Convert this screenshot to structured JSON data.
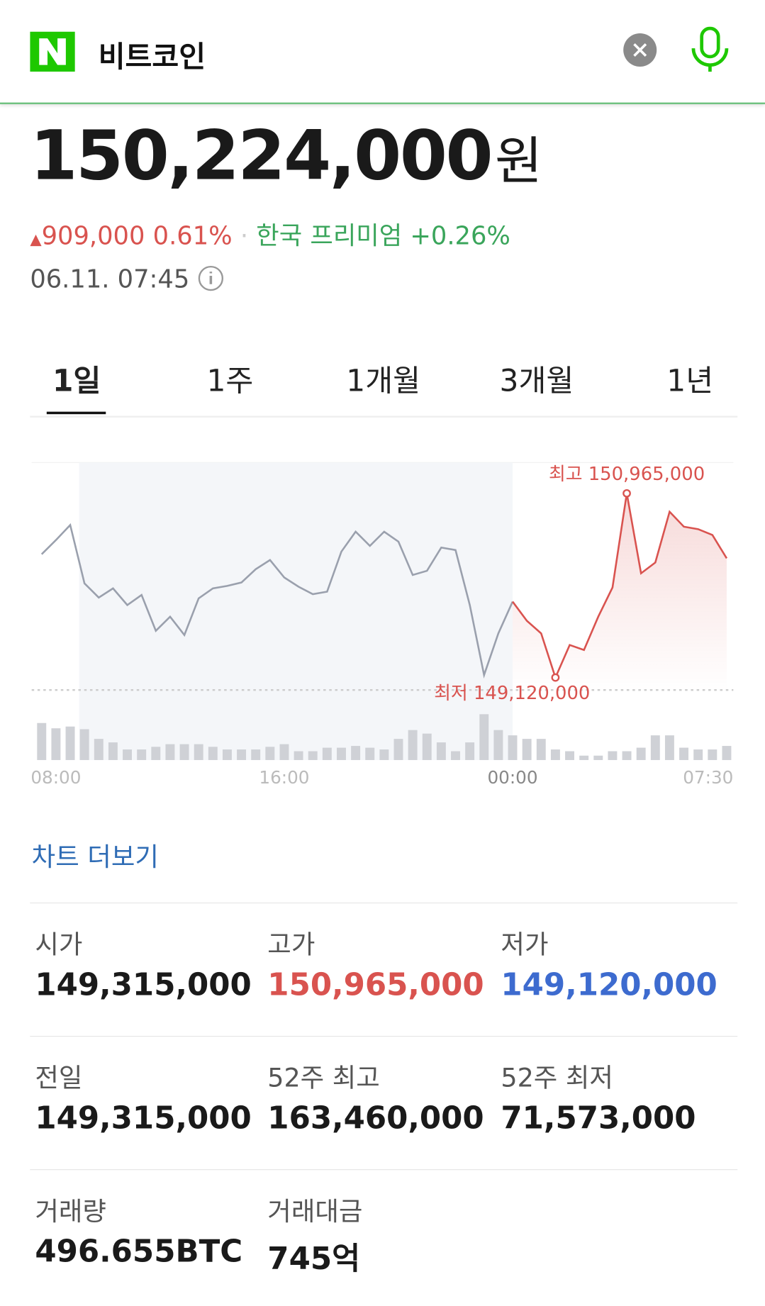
{
  "header": {
    "title": "비트코인"
  },
  "quote": {
    "price": "150,224,000",
    "unit": "원",
    "change": "909,000",
    "change_pct": "0.61%",
    "premium_label": "한국 프리미엄",
    "premium": "+0.26%",
    "timestamp": "06.11. 07:45"
  },
  "tabs": [
    "1일",
    "1주",
    "1개월",
    "3개월",
    "1년"
  ],
  "chart_data": {
    "type": "line",
    "categories": [
      null,
      "08:00",
      null,
      null,
      null,
      null,
      null,
      null,
      null,
      null,
      null,
      null,
      null,
      null,
      null,
      null,
      null,
      "16:00",
      null,
      null,
      null,
      null,
      null,
      null,
      null,
      null,
      null,
      null,
      null,
      null,
      null,
      null,
      null,
      "00:00",
      null,
      null,
      null,
      null,
      null,
      null,
      null,
      null,
      null,
      null,
      null,
      null,
      null,
      null,
      "07:30"
    ],
    "values": [
      150355000,
      150497000,
      150648000,
      150063000,
      149921000,
      150013000,
      149846000,
      149947000,
      149588000,
      149729000,
      149546000,
      149913000,
      150013000,
      150038000,
      150072000,
      150205000,
      150297000,
      150122000,
      150030000,
      149955000,
      149980000,
      150381000,
      150581000,
      150439000,
      150581000,
      150481000,
      150147000,
      150189000,
      150422000,
      150397000,
      149846000,
      149145000,
      149562000,
      149880000,
      149688000,
      149562000,
      149120000,
      149446000,
      149396000,
      149729000,
      150022000,
      150965000,
      150164000,
      150272000,
      150781000,
      150631000,
      150606000,
      150548000,
      150314000
    ],
    "volume": [
      42,
      36,
      38,
      35,
      24,
      20,
      12,
      12,
      15,
      18,
      18,
      18,
      15,
      12,
      12,
      12,
      15,
      18,
      10,
      10,
      14,
      14,
      16,
      14,
      12,
      24,
      34,
      30,
      20,
      10,
      20,
      52,
      34,
      28,
      24,
      24,
      12,
      10,
      5,
      5,
      10,
      10,
      14,
      28,
      28,
      14,
      12,
      12,
      16
    ],
    "ylim": [
      148978000,
      151232000
    ],
    "prior_color": "#9aa0ad",
    "color": "#d9534f",
    "volume_color": "#cfd1d6",
    "annotations": [
      "최고 150,965,000",
      "최저 149,120,000"
    ]
  },
  "more_link": "차트 더보기",
  "stats": [
    {
      "label": "시가",
      "value": "149,315,000"
    },
    {
      "label": "고가",
      "value": "150,965,000",
      "color": "#d9534f"
    },
    {
      "label": "저가",
      "value": "149,120,000",
      "color": "#3d6bcf"
    },
    {
      "label": "전일",
      "value": "149,315,000"
    },
    {
      "label": "52주 최고",
      "value": "163,460,000"
    },
    {
      "label": "52주 최저",
      "value": "71,573,000"
    },
    {
      "label": "거래량",
      "value": "496.655BTC"
    },
    {
      "label": "거래대금",
      "value": "745억"
    }
  ]
}
